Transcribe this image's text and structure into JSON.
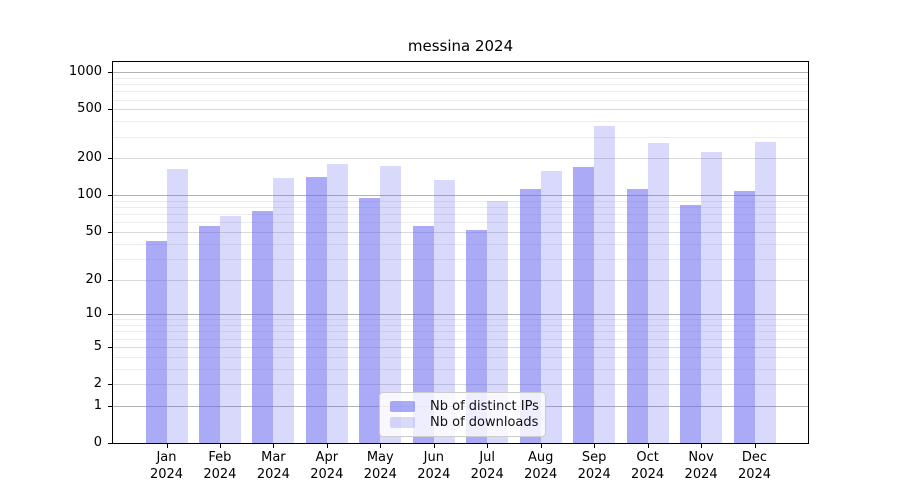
{
  "chart_data": {
    "type": "bar",
    "title": "messina 2024",
    "categories": [
      "Jan 2024",
      "Feb 2024",
      "Mar 2024",
      "Apr 2024",
      "May 2024",
      "Jun 2024",
      "Jul 2024",
      "Aug 2024",
      "Sep 2024",
      "Oct 2024",
      "Nov 2024",
      "Dec 2024"
    ],
    "x_tick_labels": [
      {
        "month": "Jan",
        "year": "2024"
      },
      {
        "month": "Feb",
        "year": "2024"
      },
      {
        "month": "Mar",
        "year": "2024"
      },
      {
        "month": "Apr",
        "year": "2024"
      },
      {
        "month": "May",
        "year": "2024"
      },
      {
        "month": "Jun",
        "year": "2024"
      },
      {
        "month": "Jul",
        "year": "2024"
      },
      {
        "month": "Aug",
        "year": "2024"
      },
      {
        "month": "Sep",
        "year": "2024"
      },
      {
        "month": "Oct",
        "year": "2024"
      },
      {
        "month": "Nov",
        "year": "2024"
      },
      {
        "month": "Dec",
        "year": "2024"
      }
    ],
    "series": [
      {
        "name": "Nb of distinct IPs",
        "color": "rgba(98,98,240,0.54)",
        "values": [
          42,
          56,
          74,
          142,
          95,
          56,
          52,
          113,
          170,
          113,
          84,
          108
        ]
      },
      {
        "name": "Nb of downloads",
        "color": "rgba(98,98,240,0.24)",
        "values": [
          165,
          68,
          139,
          181,
          174,
          133,
          90,
          159,
          366,
          266,
          225,
          271
        ]
      }
    ],
    "y_axis": {
      "scale": "log1p",
      "ylim": [
        0,
        1210
      ],
      "tick_values": [
        0,
        1,
        2,
        5,
        10,
        20,
        50,
        100,
        200,
        500,
        1000
      ],
      "tick_labels": [
        "0",
        "1",
        "2",
        "5",
        "10",
        "20",
        "50",
        "100",
        "200",
        "500",
        "1000"
      ],
      "grid_major": [
        1,
        10,
        100,
        1000
      ],
      "grid_mid": [
        2,
        5,
        20,
        50,
        200,
        500
      ],
      "grid_minor": [
        3,
        4,
        6,
        7,
        8,
        9,
        30,
        40,
        60,
        70,
        80,
        90,
        300,
        400,
        600,
        700,
        800,
        900
      ],
      "grid_colors": {
        "major": "#b2b2b2",
        "mid": "#d9d9d9",
        "minor": "#ececec"
      }
    },
    "legend": {
      "position": "lower center",
      "labels": [
        "Nb of distinct IPs",
        "Nb of downloads"
      ]
    }
  }
}
